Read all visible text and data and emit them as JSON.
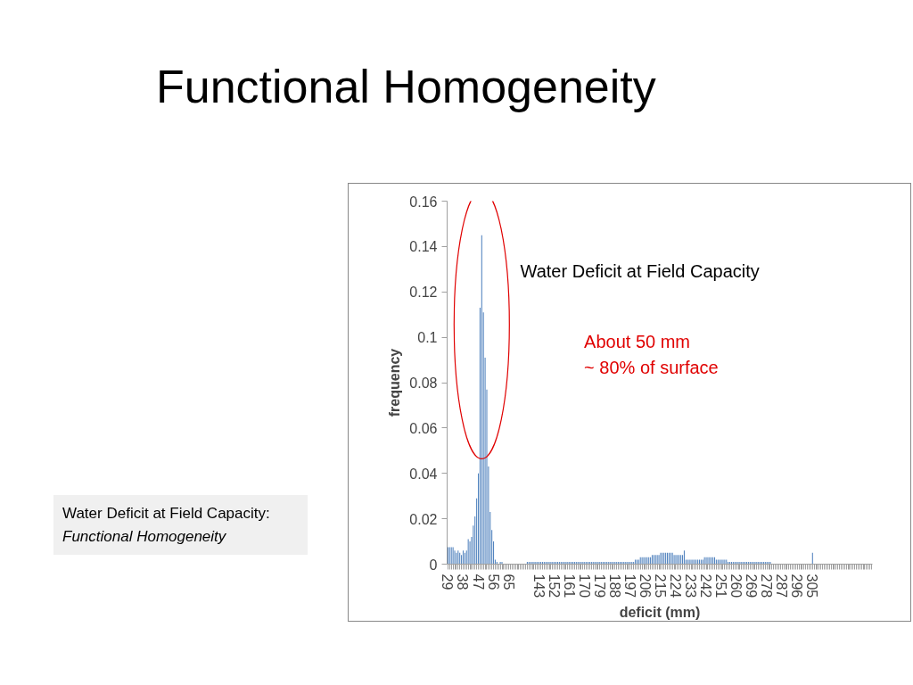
{
  "chart_data": {
    "type": "bar",
    "title": "Functional Homogeneity",
    "xlabel": "deficit (mm)",
    "ylabel": "frequency",
    "categories": [
      "29",
      null,
      null,
      null,
      null,
      null,
      null,
      null,
      null,
      "38",
      null,
      null,
      null,
      null,
      null,
      null,
      null,
      null,
      "47",
      null,
      null,
      null,
      null,
      null,
      null,
      null,
      null,
      "56",
      null,
      null,
      null,
      null,
      null,
      null,
      null,
      null,
      "65",
      null,
      null,
      null,
      null,
      null,
      null,
      null,
      null,
      null,
      null,
      null,
      null,
      null,
      null,
      null,
      null,
      null,
      "143",
      null,
      null,
      null,
      null,
      null,
      null,
      null,
      null,
      "152",
      null,
      null,
      null,
      null,
      null,
      null,
      null,
      null,
      "161",
      null,
      null,
      null,
      null,
      null,
      null,
      null,
      null,
      "170",
      null,
      null,
      null,
      null,
      null,
      null,
      null,
      null,
      "179",
      null,
      null,
      null,
      null,
      null,
      null,
      null,
      null,
      "188",
      null,
      null,
      null,
      null,
      null,
      null,
      null,
      null,
      "197",
      null,
      null,
      null,
      null,
      null,
      null,
      null,
      null,
      "206",
      null,
      null,
      null,
      null,
      null,
      null,
      null,
      null,
      "215",
      null,
      null,
      null,
      null,
      null,
      null,
      null,
      null,
      "224",
      null,
      null,
      null,
      null,
      null,
      null,
      null,
      null,
      "233",
      null,
      null,
      null,
      null,
      null,
      null,
      null,
      null,
      "242",
      null,
      null,
      null,
      null,
      null,
      null,
      null,
      null,
      "251",
      null,
      null,
      null,
      null,
      null,
      null,
      null,
      null,
      "260",
      null,
      null,
      null,
      null,
      null,
      null,
      null,
      null,
      "269",
      null,
      null,
      null,
      null,
      null,
      null,
      null,
      null,
      "278",
      null,
      null,
      null,
      null,
      null,
      null,
      null,
      null,
      "287",
      null,
      null,
      null,
      null,
      null,
      null,
      null,
      null,
      "296",
      null,
      null,
      null,
      null,
      null,
      null,
      null,
      null,
      "305",
      null,
      null,
      null,
      null,
      null,
      null,
      null,
      null,
      null,
      null,
      null,
      null,
      null,
      null,
      null,
      null,
      null,
      null,
      null,
      null,
      null,
      null,
      null,
      null,
      null,
      null,
      null,
      null,
      null,
      null,
      null,
      null,
      null,
      null,
      null
    ],
    "values": [
      0.0075,
      0.0075,
      0.0075,
      0.0075,
      0.006,
      0.005,
      0.006,
      0.005,
      0.004,
      0.006,
      0.005,
      0.006,
      0.011,
      0.01,
      0.012,
      0.017,
      0.021,
      0.029,
      0.04,
      0.113,
      0.145,
      0.111,
      0.091,
      0.077,
      0.043,
      0.023,
      0.015,
      0.01,
      0.002,
      0.001,
      0,
      0.001,
      0.001,
      0,
      0,
      0,
      0,
      0,
      0,
      0,
      0,
      0,
      0,
      0,
      0,
      0,
      0,
      0.001,
      0.001,
      0.001,
      0.001,
      0.001,
      0.001,
      0.001,
      0.001,
      0.001,
      0.001,
      0.001,
      0.001,
      0.001,
      0.001,
      0.001,
      0.001,
      0.001,
      0.001,
      0.001,
      0.001,
      0.001,
      0.001,
      0.001,
      0.001,
      0.001,
      0.001,
      0.001,
      0.001,
      0.001,
      0.001,
      0.001,
      0.001,
      0.001,
      0.001,
      0.001,
      0.001,
      0.001,
      0.001,
      0.001,
      0.001,
      0.001,
      0.001,
      0.001,
      0.001,
      0.001,
      0.001,
      0.001,
      0.001,
      0.001,
      0.001,
      0.001,
      0.001,
      0.001,
      0.001,
      0.001,
      0.001,
      0.001,
      0.001,
      0.001,
      0.001,
      0.001,
      0.001,
      0.001,
      0.001,
      0.002,
      0.002,
      0.002,
      0.003,
      0.003,
      0.003,
      0.003,
      0.003,
      0.003,
      0.003,
      0.004,
      0.004,
      0.004,
      0.004,
      0.004,
      0.005,
      0.005,
      0.005,
      0.005,
      0.005,
      0.005,
      0.005,
      0.005,
      0.004,
      0.004,
      0.004,
      0.004,
      0.004,
      0.004,
      0.006,
      0.002,
      0.002,
      0.002,
      0.002,
      0.002,
      0.002,
      0.002,
      0.002,
      0.002,
      0.002,
      0.002,
      0.003,
      0.003,
      0.003,
      0.003,
      0.003,
      0.003,
      0.003,
      0.002,
      0.002,
      0.002,
      0.002,
      0.002,
      0.002,
      0.002,
      0.001,
      0.001,
      0.001,
      0.001,
      0.001,
      0.001,
      0.001,
      0.001,
      0.001,
      0.001,
      0.001,
      0.001,
      0.001,
      0.001,
      0.001,
      0.001,
      0.001,
      0.001,
      0.001,
      0.001,
      0.001,
      0.001,
      0.001,
      0.001,
      0.001,
      0.001,
      0,
      0,
      0,
      0,
      0,
      0,
      0,
      0,
      0,
      0,
      0,
      0,
      0,
      0,
      0,
      0,
      0,
      0,
      0,
      0,
      0,
      0,
      0,
      0,
      0.005,
      0,
      0,
      0,
      0,
      0,
      0,
      0,
      0,
      0,
      0,
      0,
      0,
      0,
      0,
      0,
      0,
      0,
      0,
      0,
      0,
      0,
      0,
      0,
      0,
      0,
      0,
      0,
      0,
      0,
      0,
      0,
      0,
      0,
      0,
      0
    ],
    "color": "#4f81bd",
    "ylim": [
      0,
      0.16
    ],
    "yticks": [
      0,
      0.02,
      0.04,
      0.06,
      0.08,
      0.1,
      0.12,
      0.14,
      0.16
    ],
    "annotations": [
      "Water Deficit at Field Capacity",
      "About 50 mm",
      "~ 80% of surface",
      "Water Deficit at Field Capacity:",
      "Functional Homogeneity"
    ]
  }
}
